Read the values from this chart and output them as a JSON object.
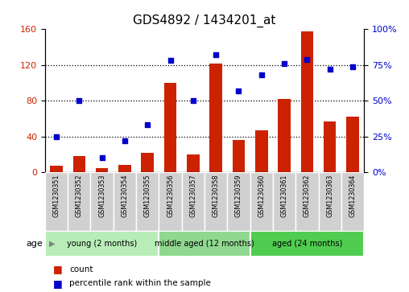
{
  "title": "GDS4892 / 1434201_at",
  "samples": [
    "GSM1230351",
    "GSM1230352",
    "GSM1230353",
    "GSM1230354",
    "GSM1230355",
    "GSM1230356",
    "GSM1230357",
    "GSM1230358",
    "GSM1230359",
    "GSM1230360",
    "GSM1230361",
    "GSM1230362",
    "GSM1230363",
    "GSM1230364"
  ],
  "counts": [
    7,
    18,
    5,
    8,
    22,
    100,
    20,
    122,
    36,
    47,
    82,
    158,
    57,
    62
  ],
  "percentiles": [
    25,
    50,
    10,
    22,
    33,
    78,
    50,
    82,
    57,
    68,
    76,
    79,
    72,
    74
  ],
  "group_boundaries": [
    {
      "label": "young (2 months)",
      "start": 0,
      "end": 5,
      "color": "#b8edb8"
    },
    {
      "label": "middle aged (12 months)",
      "start": 5,
      "end": 9,
      "color": "#90d890"
    },
    {
      "label": "aged (24 months)",
      "start": 9,
      "end": 14,
      "color": "#50cc50"
    }
  ],
  "bar_color": "#cc2200",
  "dot_color": "#0000cc",
  "left_ylim": [
    0,
    160
  ],
  "left_yticks": [
    0,
    40,
    80,
    120,
    160
  ],
  "right_ylim": [
    0,
    100
  ],
  "right_yticks": [
    0,
    25,
    50,
    75,
    100
  ],
  "right_yticklabels": [
    "0%",
    "25%",
    "50%",
    "75%",
    "100%"
  ],
  "hgrid_lines": [
    40,
    80,
    120
  ],
  "age_label": "age",
  "legend_count": "count",
  "legend_percentile": "percentile rank within the sample",
  "xtick_bg_color": "#d0d0d0",
  "plot_bg_color": "#ffffff",
  "title_fontsize": 11,
  "tick_fontsize": 8,
  "label_fontsize": 8
}
